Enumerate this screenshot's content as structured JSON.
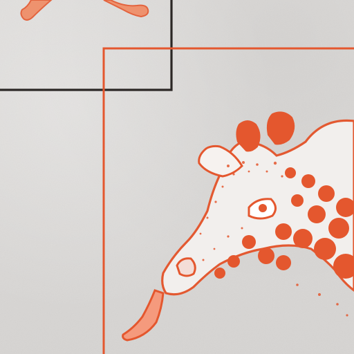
{
  "scene": {
    "paper_color": "#d8d6d4",
    "ink_orange": "#e4572e",
    "ink_dark": "#2b2725"
  },
  "elements": {
    "dark_frame": "dark-ink-rectangle-frame",
    "orange_frame": "orange-ink-rectangle-frame",
    "top_sketch": "orange-bone-sketch-fragments",
    "giraffe": "orange-giraffe-head-illustration"
  }
}
